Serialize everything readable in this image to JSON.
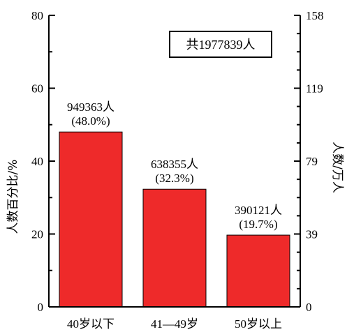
{
  "chart_data": {
    "type": "bar",
    "categories": [
      "40岁以下",
      "41—49岁",
      "50岁以上"
    ],
    "values": [
      48.0,
      32.3,
      19.7
    ],
    "counts": [
      "949363人",
      "638355人",
      "390121人"
    ],
    "percent_labels": [
      "(48.0%)",
      "(32.3%)",
      "(19.7%)"
    ],
    "ylabel": "人数百分比/%",
    "ylim": [
      0,
      80
    ],
    "yticks": [
      0,
      20,
      40,
      60,
      80
    ],
    "y2label": "人数/万人",
    "y2ticks": [
      0,
      39,
      79,
      119,
      158
    ],
    "annotation": "共1977839人",
    "bar_color": "#ee2a2a",
    "grid": false
  }
}
